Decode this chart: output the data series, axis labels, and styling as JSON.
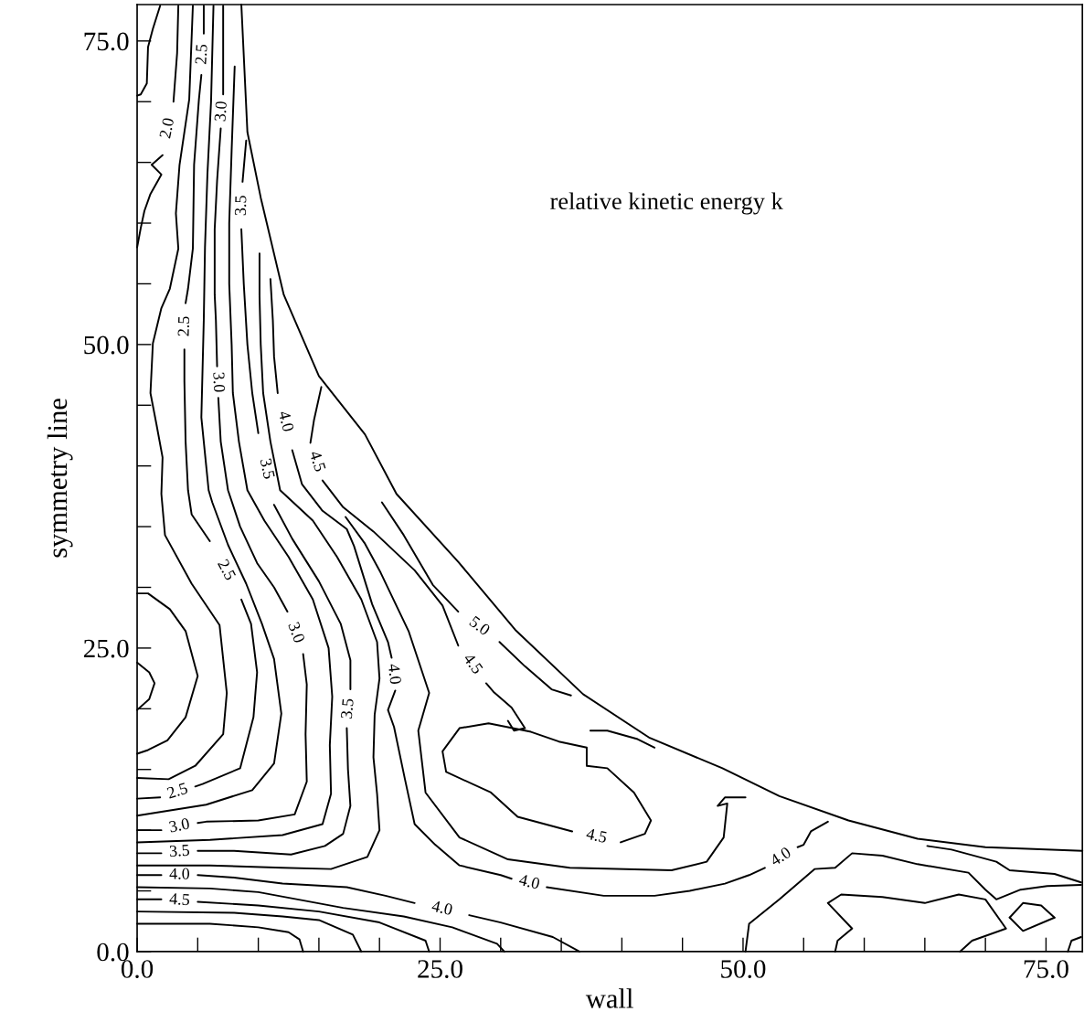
{
  "chart_data": {
    "type": "line",
    "xlabel": "wall",
    "ylabel": "symmetry line",
    "annotations": [
      "relative kinetic energy k",
      "2.0",
      "2.5",
      "2.5",
      "2.5",
      "2.5",
      "3.0",
      "3.0",
      "3.0",
      "3.0",
      "3.5",
      "3.5",
      "3.5",
      "3.5",
      "4.0",
      "4.0",
      "4.0",
      "4.0",
      "4.5",
      "4.5",
      "5.0",
      "4.5",
      "4.0",
      "4.0",
      "4.5"
    ],
    "xlim": [
      0,
      78
    ],
    "ylim": [
      0,
      78
    ],
    "xticks": [
      {
        "value": 0,
        "label": "0.0"
      },
      {
        "value": 5,
        "label": null
      },
      {
        "value": 10,
        "label": null
      },
      {
        "value": 15,
        "label": null
      },
      {
        "value": 20,
        "label": null
      },
      {
        "value": 25,
        "label": "25.0"
      },
      {
        "value": 30,
        "label": null
      },
      {
        "value": 35,
        "label": null
      },
      {
        "value": 40,
        "label": null
      },
      {
        "value": 45,
        "label": null
      },
      {
        "value": 50,
        "label": "50.0"
      },
      {
        "value": 55,
        "label": null
      },
      {
        "value": 60,
        "label": null
      },
      {
        "value": 65,
        "label": null
      },
      {
        "value": 70,
        "label": null
      },
      {
        "value": 75,
        "label": "75.0"
      }
    ],
    "yticks": [
      {
        "value": 0,
        "label": "0.0"
      },
      {
        "value": 5,
        "label": null
      },
      {
        "value": 10,
        "label": null
      },
      {
        "value": 15,
        "label": null
      },
      {
        "value": 20,
        "label": null
      },
      {
        "value": 25,
        "label": "25.0"
      },
      {
        "value": 30,
        "label": null
      },
      {
        "value": 35,
        "label": null
      },
      {
        "value": 40,
        "label": null
      },
      {
        "value": 45,
        "label": null
      },
      {
        "value": 50,
        "label": "50.0"
      },
      {
        "value": 55,
        "label": null
      },
      {
        "value": 60,
        "label": null
      },
      {
        "value": 65,
        "label": null
      },
      {
        "value": 70,
        "label": null
      },
      {
        "value": 75,
        "label": "75.0"
      }
    ],
    "grid": false,
    "legend": false,
    "marker": "none",
    "line_style": "solid",
    "series": [
      {
        "color": "#000000",
        "x": [
          8.6,
          9.1,
          10.2,
          12.1,
          15.0,
          18.8,
          21.4,
          26.5,
          31.2,
          36.8,
          42.3,
          48.3,
          53.0,
          58.7,
          64.4,
          70.0,
          78.0
        ],
        "values": [
          78.0,
          67.5,
          62.1,
          54.1,
          47.4,
          42.6,
          37.7,
          32.1,
          26.5,
          21.2,
          17.6,
          15.1,
          12.8,
          10.8,
          9.3,
          8.6,
          8.3
        ]
      },
      {
        "color": "#000000",
        "x": [
          1.9,
          1.3,
          0.9,
          0.8,
          0.3,
          0
        ],
        "values": [
          77.9,
          76.0,
          74.5,
          71.5,
          70.6,
          70.5
        ]
      },
      {
        "color": "#000000",
        "x": [
          3.4,
          3.3,
          3.0,
          null,
          2.1,
          1.2,
          2.0,
          1.1,
          0.6,
          0.3,
          0
        ],
        "values": [
          77.9,
          74.0,
          70.0,
          null,
          65.6,
          64.8,
          64.0,
          62.4,
          61.0,
          59.6,
          58.0
        ]
      },
      {
        "color": "#000000",
        "x": [
          0,
          0.9,
          2.7,
          4.0,
          5.0,
          4.0,
          2.5,
          0.9,
          0
        ],
        "values": [
          29.5,
          29.5,
          28.2,
          26.4,
          22.7,
          19.3,
          17.4,
          16.6,
          16.3
        ]
      },
      {
        "color": "#000000",
        "x": [
          0,
          1.0,
          1.44,
          1.0,
          0
        ],
        "values": [
          23.8,
          23.0,
          22.1,
          20.8,
          19.9
        ]
      },
      {
        "color": "#000000",
        "x": [
          0,
          2.6,
          4.8,
          7.1,
          7.4,
          6.8,
          4.5,
          2.3,
          2.0,
          2.1,
          1.6,
          1.1,
          1.3,
          2.0,
          2.7,
          3.4,
          3.2,
          3.5,
          4.3,
          4.6
        ],
        "values": [
          14.3,
          14.2,
          15.3,
          17.9,
          21.3,
          26.9,
          30.3,
          34.3,
          37.7,
          40.7,
          43.4,
          46.0,
          50.1,
          53.0,
          54.6,
          57.9,
          60.8,
          64.8,
          70.2,
          77.9
        ]
      },
      {
        "color": "#000000",
        "x": [
          0,
          1.9,
          null,
          4.8,
          5.4,
          8.5,
          9.6,
          9.9,
          9.4,
          8.6,
          null,
          6.0,
          4.5,
          4.2,
          4.0,
          3.9,
          3.9,
          null,
          4.0,
          4.2,
          4.6,
          4.7,
          5.1,
          5.3,
          null,
          5.5,
          5.5
        ],
        "values": [
          12.6,
          12.7,
          null,
          13.6,
          13.8,
          15.1,
          19.3,
          23.0,
          27.0,
          29.0,
          null,
          33.8,
          36.0,
          38.0,
          42.0,
          47.0,
          49.6,
          null,
          53.4,
          54.6,
          57.9,
          64.8,
          70.2,
          72.2,
          null,
          75.6,
          77.9
        ]
      },
      {
        "color": "#000000",
        "x": [
          0,
          5.7,
          9.5,
          11.3,
          11.9,
          11.3,
          10.3,
          9.0,
          7.5,
          6.2,
          5.9,
          5.3,
          5.4,
          5.5,
          5.6,
          5.8,
          6.1,
          6.3
        ],
        "values": [
          11.2,
          12.1,
          13.3,
          15.5,
          19.6,
          24.1,
          27.0,
          30.3,
          33.5,
          37.0,
          38.0,
          44.0,
          48.0,
          52.0,
          58.0,
          64.0,
          70.0,
          77.9
        ]
      },
      {
        "color": "#000000",
        "x": [
          0,
          2.0,
          null,
          5.0,
          5.7,
          10.0,
          13.0,
          14.0,
          13.9,
          14.0,
          13.7,
          null,
          12.4,
          11.3,
          9.9,
          8.5,
          7.5,
          6.9,
          6.7,
          null,
          6.6,
          6.5,
          6.4,
          6.4,
          6.6,
          6.9,
          null,
          7.1,
          7.1
        ],
        "values": [
          10.0,
          10.0,
          null,
          10.6,
          10.7,
          10.8,
          11.3,
          14.0,
          17.9,
          22.0,
          24.5,
          null,
          28.0,
          30.0,
          32.0,
          35.0,
          38.0,
          42.0,
          45.6,
          null,
          48.2,
          52.0,
          54.1,
          59.5,
          63.5,
          67.8,
          null,
          70.6,
          77.9
        ]
      },
      {
        "color": "#000000",
        "x": [
          0,
          6.0,
          12.0,
          15.3,
          16.0,
          15.9,
          16.1,
          15.8,
          14.5,
          12.5,
          10.5,
          9.1,
          8.4,
          7.9,
          7.8,
          7.6,
          7.6,
          7.8,
          8.05
        ],
        "values": [
          9.0,
          9.2,
          9.6,
          10.5,
          13.0,
          17.0,
          21.0,
          25.0,
          29.0,
          32.5,
          35.5,
          38.0,
          42.0,
          46.0,
          50.0,
          55.0,
          60.0,
          66.0,
          72.9
        ]
      },
      {
        "color": "#000000",
        "x": [
          0,
          2.0,
          null,
          5.0,
          8.0,
          12.7,
          15.5,
          17.0,
          17.6,
          17.4,
          17.3,
          null,
          17.6,
          17.6,
          16.8,
          15.0,
          12.8,
          11.3,
          null,
          10.0,
          9.5,
          9.1,
          8.8,
          8.6,
          null,
          8.7,
          9.0
        ],
        "values": [
          8.1,
          8.1,
          null,
          8.3,
          8.3,
          8.0,
          8.7,
          9.7,
          12.0,
          15.0,
          18.4,
          null,
          21.6,
          24.0,
          27.0,
          30.5,
          34.0,
          36.8,
          null,
          42.7,
          46.0,
          50.0,
          55.0,
          59.5,
          null,
          63.4,
          66.8
        ]
      },
      {
        "color": "#000000",
        "x": [
          0,
          6.0,
          12.0,
          16.0,
          19.0,
          20.0,
          19.8,
          19.5,
          19.6,
          20.0,
          19.8,
          18.5,
          16.5,
          14.5,
          11.8,
          11.0,
          10.4,
          10.2,
          10.1,
          10.1
        ],
        "values": [
          7.1,
          7.1,
          6.9,
          6.8,
          7.8,
          10.0,
          13.0,
          16.0,
          19.5,
          22.5,
          25.5,
          29.0,
          32.5,
          35.5,
          38.0,
          42.0,
          46.0,
          50.0,
          54.0,
          57.5
        ]
      },
      {
        "color": "#000000",
        "x": [
          11.0,
          11.2,
          11.3,
          11.6,
          null,
          12.8,
          13.6,
          15.3,
          17.3,
          17.9,
          19.4,
          20.7,
          21.0,
          null,
          21.3,
          20.7,
          21.2,
          22.1,
          22.9,
          24.6,
          26.6,
          30.0,
          30.9,
          null,
          33.8,
          38.5,
          42.7,
          45.6,
          48.5,
          50.5,
          51.8,
          null,
          54.5,
          55.0,
          55.6,
          57.0
        ],
        "values": [
          55.4,
          52.0,
          49.0,
          46.0,
          null,
          41.3,
          38.5,
          36.3,
          34.8,
          33.4,
          28.6,
          25.5,
          24.2,
          null,
          21.5,
          19.9,
          18.5,
          14.2,
          10.5,
          8.8,
          7.1,
          6.3,
          6.0,
          null,
          5.3,
          4.6,
          4.6,
          5.0,
          5.6,
          6.3,
          6.9,
          null,
          8.6,
          8.8,
          9.9,
          10.7
        ]
      },
      {
        "color": "#000000",
        "x": [
          17.2,
          18.8,
          20.1,
          22.4,
          24.1,
          23.2,
          23.8,
          26.6,
          30.6,
          35.7,
          44.1,
          47.0,
          48.4,
          48.7,
          47.9,
          48.5,
          50.2
        ],
        "values": [
          35.8,
          33.6,
          31.2,
          26.4,
          21.3,
          18.2,
          13.1,
          9.4,
          7.6,
          6.9,
          6.7,
          7.4,
          9.4,
          12.2,
          12.0,
          12.7,
          12.7
        ]
      },
      {
        "color": "#000000",
        "x": [
          15.2,
          14.6,
          14.3,
          null,
          15.3,
          17.0,
          19.5,
          22.9,
          25.2,
          26.5,
          null,
          28.8,
          29.4,
          30.9,
          32.0,
          31.1,
          30.6
        ],
        "values": [
          46.5,
          43.8,
          41.9,
          null,
          38.8,
          36.6,
          34.6,
          31.4,
          28.5,
          25.2,
          null,
          22.1,
          21.4,
          20.1,
          18.4,
          18.2,
          19.0
        ]
      },
      {
        "color": "#000000",
        "x": [
          20.2,
          22.0,
          24.4,
          26.5,
          null,
          29.9,
          32.0,
          34.2,
          35.8
        ],
        "values": [
          37.0,
          34.3,
          30.2,
          28.0,
          null,
          25.5,
          23.5,
          21.6,
          21.1
        ]
      },
      {
        "color": "#000000",
        "x": [
          26.6,
          25.2,
          25.5,
          29.2,
          31.4,
          35.9,
          null,
          39.9,
          41.9,
          42.4,
          41.0,
          38.8,
          37.1,
          37.1,
          34.8,
          32.5,
          29.0,
          26.6
        ],
        "values": [
          18.4,
          16.5,
          14.8,
          13.1,
          11.1,
          9.9,
          null,
          9.0,
          9.7,
          10.8,
          13.1,
          15.1,
          15.3,
          16.8,
          17.3,
          18.1,
          18.8,
          18.4
        ]
      },
      {
        "color": "#000000",
        "x": [
          37.4,
          38.8,
          41.3,
          42.7
        ],
        "values": [
          18.2,
          18.2,
          17.5,
          16.8
        ]
      },
      {
        "color": "#000000",
        "x": [
          0,
          2.0,
          null,
          5.0,
          8.0,
          12.0,
          17.3,
          20.5,
          22.9,
          null,
          27.4,
          30.0,
          34.3,
          36.5
        ],
        "values": [
          6.3,
          6.3,
          null,
          6.3,
          6.1,
          5.6,
          5.3,
          4.6,
          4.0,
          null,
          3.0,
          2.4,
          1.2,
          0
        ]
      },
      {
        "color": "#000000",
        "x": [
          0,
          6.0,
          10.0,
          17.0,
          22.0,
          26.0,
          29.7,
          30.3
        ],
        "values": [
          5.3,
          5.2,
          4.9,
          3.6,
          2.9,
          2.0,
          0.65,
          0
        ]
      },
      {
        "color": "#000000",
        "x": [
          0,
          2.0,
          null,
          5.0,
          10.0,
          15.0,
          20.0,
          23.8,
          24.1
        ],
        "values": [
          4.3,
          4.3,
          null,
          4.1,
          3.8,
          3.3,
          2.4,
          0.9,
          0
        ]
      },
      {
        "color": "#000000",
        "x": [
          0,
          8.0,
          12.0,
          15.0,
          17.8,
          18.5
        ],
        "values": [
          3.3,
          3.2,
          2.9,
          2.6,
          1.4,
          0
        ]
      },
      {
        "color": "#000000",
        "x": [
          0,
          6.0,
          10.0,
          12.5,
          13.4,
          13.7
        ],
        "values": [
          2.3,
          2.3,
          2.0,
          1.6,
          1.0,
          0
        ]
      },
      {
        "color": "#000000",
        "x": [
          50.2,
          50.5,
          53.0,
          55.9,
          57.6,
          59.0,
          61.5,
          64.4,
          68.6,
          70.0,
          70.9,
          72.9,
          75.1,
          77.9
        ],
        "values": [
          0,
          2.3,
          4.3,
          6.8,
          6.9,
          8.1,
          7.9,
          7.2,
          6.5,
          5.1,
          4.3,
          5.1,
          5.4,
          5.5
        ]
      },
      {
        "color": "#000000",
        "x": [
          57.6,
          57.8,
          59.0,
          57.0,
          58.1,
          61.5,
          65.0,
          67.8,
          70.0,
          71.7,
          68.9,
          67.9
        ],
        "values": [
          0,
          0.9,
          1.9,
          4.0,
          4.7,
          4.5,
          4.0,
          4.7,
          4.3,
          1.9,
          0.9,
          0
        ]
      },
      {
        "color": "#000000",
        "x": [
          72.0,
          73.1,
          74.6,
          75.7
        ],
        "values": [
          2.8,
          4.0,
          3.8,
          2.8
        ]
      },
      {
        "color": "#000000",
        "x": [
          72.0,
          73.1,
          75.7
        ],
        "values": [
          2.8,
          1.7,
          2.8
        ]
      },
      {
        "color": "#000000",
        "x": [
          76.8,
          77.1,
          77.9
        ],
        "values": [
          0,
          0.9,
          1.2
        ]
      },
      {
        "color": "#000000",
        "x": [
          65.2,
          67.2,
          70.9,
          72.0,
          75.7,
          77.9
        ],
        "values": [
          8.7,
          8.4,
          7.4,
          6.7,
          6.4,
          5.7
        ]
      }
    ]
  }
}
